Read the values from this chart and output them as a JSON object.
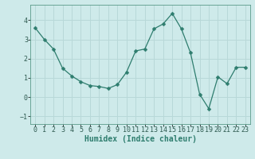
{
  "x": [
    0,
    1,
    2,
    3,
    4,
    5,
    6,
    7,
    8,
    9,
    10,
    11,
    12,
    13,
    14,
    15,
    16,
    17,
    18,
    19,
    20,
    21,
    22,
    23
  ],
  "y": [
    3.6,
    3.0,
    2.5,
    1.5,
    1.1,
    0.8,
    0.6,
    0.55,
    0.45,
    0.65,
    1.3,
    2.4,
    2.5,
    3.55,
    3.8,
    4.35,
    3.55,
    2.3,
    0.15,
    -0.6,
    1.05,
    0.7,
    1.55,
    1.55
  ],
  "line_color": "#2e7d6e",
  "marker": "D",
  "marker_size": 2.5,
  "bg_color": "#ceeaea",
  "grid_color": "#b8d8d8",
  "xlabel": "Humidex (Indice chaleur)",
  "xlabel_fontsize": 7,
  "tick_fontsize": 6,
  "xlim": [
    -0.5,
    23.5
  ],
  "ylim": [
    -1.4,
    4.8
  ],
  "yticks": [
    -1,
    0,
    1,
    2,
    3,
    4
  ],
  "xticks": [
    0,
    1,
    2,
    3,
    4,
    5,
    6,
    7,
    8,
    9,
    10,
    11,
    12,
    13,
    14,
    15,
    16,
    17,
    18,
    19,
    20,
    21,
    22,
    23
  ]
}
